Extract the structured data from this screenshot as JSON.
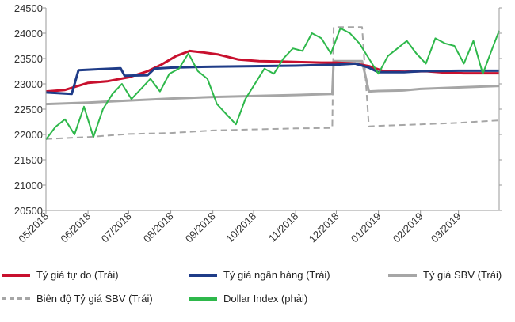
{
  "chart_data": {
    "type": "line",
    "title": "",
    "xlabel": "",
    "ylabel": "",
    "ylim": [
      20500,
      24500
    ],
    "y_ticks": [
      20500,
      21000,
      21500,
      22000,
      22500,
      23000,
      23500,
      24000,
      24500
    ],
    "y_tick_labels": [
      "20500",
      "21000",
      "21500",
      "22000",
      "22500",
      "23000",
      "23500",
      "24000",
      "24500"
    ],
    "x_range": [
      "2018-05-01",
      "2019-03-31"
    ],
    "x_ticks": [
      "2018-05-01",
      "2018-06-01",
      "2018-07-01",
      "2018-08-01",
      "2018-09-01",
      "2018-10-01",
      "2018-11-01",
      "2018-12-01",
      "2019-01-01",
      "2019-02-01",
      "2019-03-01"
    ],
    "x_tick_labels": [
      "05/2018",
      "06/2018",
      "07/2018",
      "08/2018",
      "09/2018",
      "10/2018",
      "11/2018",
      "12/2018",
      "01/2019",
      "02/2019",
      "03/2019"
    ],
    "right_axis_note": "right axis tick labels cut off at image edge",
    "grid": false,
    "legend_position": "bottom",
    "series": [
      {
        "name": "Tỷ giá tự do (Trái)",
        "axis": "left",
        "style": "solid",
        "color": "#c8102e",
        "x": [
          "2018-05-01",
          "2018-05-15",
          "2018-06-01",
          "2018-06-15",
          "2018-07-01",
          "2018-07-15",
          "2018-07-25",
          "2018-08-05",
          "2018-08-15",
          "2018-08-25",
          "2018-09-05",
          "2018-09-20",
          "2018-10-05",
          "2018-10-20",
          "2018-11-05",
          "2018-11-20",
          "2018-12-01",
          "2018-12-15",
          "2018-12-25",
          "2019-01-05",
          "2019-01-20",
          "2019-02-05",
          "2019-02-20",
          "2019-03-05",
          "2019-03-20",
          "2019-03-31"
        ],
        "y": [
          22850,
          22880,
          23020,
          23050,
          23130,
          23250,
          23380,
          23550,
          23650,
          23620,
          23580,
          23480,
          23450,
          23440,
          23430,
          23420,
          23420,
          23400,
          23350,
          23250,
          23240,
          23250,
          23220,
          23210,
          23210,
          23210
        ]
      },
      {
        "name": "Tỷ giá ngân hàng (Trái)",
        "axis": "left",
        "style": "solid",
        "color": "#1f3c88",
        "x": [
          "2018-05-01",
          "2018-05-20",
          "2018-05-25",
          "2018-06-10",
          "2018-06-25",
          "2018-06-28",
          "2018-07-15",
          "2018-07-20",
          "2018-08-01",
          "2018-09-01",
          "2018-10-01",
          "2018-11-01",
          "2018-12-01",
          "2018-12-15",
          "2018-12-25",
          "2019-01-01",
          "2019-01-20",
          "2019-02-01",
          "2019-03-01",
          "2019-03-31"
        ],
        "y": [
          22830,
          22800,
          23270,
          23290,
          23310,
          23160,
          23170,
          23300,
          23320,
          23340,
          23350,
          23360,
          23380,
          23400,
          23320,
          23230,
          23230,
          23250,
          23260,
          23260
        ]
      },
      {
        "name": "Tỷ giá SBV (Trái)",
        "axis": "left",
        "style": "solid",
        "color": "#a6a6a6",
        "x": [
          "2018-05-01",
          "2018-06-01",
          "2018-07-01",
          "2018-08-01",
          "2018-09-01",
          "2018-10-01",
          "2018-11-01",
          "2018-11-28",
          "2018-11-29",
          "2018-12-20",
          "2018-12-25",
          "2019-01-01",
          "2019-01-20",
          "2019-02-01",
          "2019-03-01",
          "2019-03-31"
        ],
        "y": [
          22600,
          22630,
          22670,
          22710,
          22740,
          22760,
          22780,
          22800,
          23450,
          23450,
          22850,
          22860,
          22870,
          22900,
          22930,
          22960
        ]
      },
      {
        "name": "Biên độ Tỷ giá SBV (Trái)",
        "axis": "left",
        "style": "dashed",
        "color": "#a6a6a6",
        "x": [
          "2018-05-01",
          "2018-06-01",
          "2018-07-01",
          "2018-08-01",
          "2018-09-01",
          "2018-10-01",
          "2018-11-01",
          "2018-11-28",
          "2018-11-29",
          "2018-12-20",
          "2018-12-25",
          "2019-01-01",
          "2019-02-01",
          "2019-03-01",
          "2019-03-31"
        ],
        "y": [
          21910,
          21950,
          22010,
          22030,
          22080,
          22100,
          22120,
          22130,
          24120,
          24120,
          22160,
          22170,
          22200,
          22230,
          22280
        ]
      },
      {
        "name": "Dollar Index (phải)",
        "axis": "right",
        "style": "solid",
        "color": "#2eb84b",
        "x": [
          "2018-05-01",
          "2018-05-08",
          "2018-05-15",
          "2018-05-22",
          "2018-05-29",
          "2018-06-05",
          "2018-06-12",
          "2018-06-19",
          "2018-06-26",
          "2018-07-03",
          "2018-07-10",
          "2018-07-17",
          "2018-07-24",
          "2018-07-31",
          "2018-08-07",
          "2018-08-14",
          "2018-08-21",
          "2018-08-28",
          "2018-09-04",
          "2018-09-11",
          "2018-09-18",
          "2018-09-25",
          "2018-10-02",
          "2018-10-09",
          "2018-10-16",
          "2018-10-23",
          "2018-10-30",
          "2018-11-06",
          "2018-11-13",
          "2018-11-20",
          "2018-11-27",
          "2018-12-04",
          "2018-12-11",
          "2018-12-18",
          "2018-12-25",
          "2019-01-01",
          "2019-01-08",
          "2019-01-15",
          "2019-01-22",
          "2019-01-29",
          "2019-02-05",
          "2019-02-12",
          "2019-02-19",
          "2019-02-26",
          "2019-03-05",
          "2019-03-12",
          "2019-03-19",
          "2019-03-26",
          "2019-03-31"
        ],
        "y": [
          21900,
          22150,
          22300,
          22000,
          22550,
          21950,
          22500,
          22800,
          23000,
          22700,
          22900,
          23100,
          22850,
          23200,
          23300,
          23600,
          23250,
          23100,
          22600,
          22400,
          22200,
          22700,
          23000,
          23300,
          23200,
          23500,
          23700,
          23650,
          24000,
          23900,
          23600,
          24100,
          24000,
          23800,
          23500,
          23200,
          23550,
          23700,
          23850,
          23600,
          23400,
          23900,
          23800,
          23750,
          23400,
          23850,
          23200,
          23700,
          24050
        ]
      }
    ]
  }
}
